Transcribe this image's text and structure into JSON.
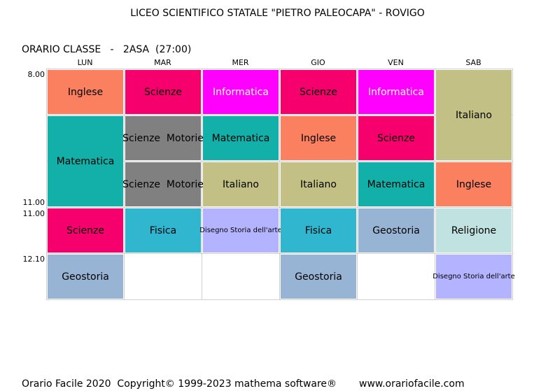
{
  "header": {
    "title": "LICEO SCIENTIFICO STATALE \"PIETRO PALEOCAPA\" - ROVIGO",
    "subtitle": "ORARIO CLASSE   -   2ASA  (27:00)"
  },
  "times": [
    "8.00",
    "11.00",
    "11.00",
    "12.10"
  ],
  "timetable": {
    "columns": [
      {
        "day": "LUN",
        "lessons": [
          "Inglese",
          "Matematica",
          "Scienze",
          "Geostoria"
        ]
      },
      {
        "day": "MAR",
        "lessons": [
          "Scienze",
          "Scienze  Motorie",
          "Scienze  Motorie",
          "Fisica"
        ]
      },
      {
        "day": "MER",
        "lessons": [
          "Informatica",
          "Matematica",
          "Italiano",
          "Disegno Storia dell'arte"
        ]
      },
      {
        "day": "GIO",
        "lessons": [
          "Scienze",
          "Inglese",
          "Italiano",
          "Fisica",
          "Geostoria"
        ]
      },
      {
        "day": "VEN",
        "lessons": [
          "Informatica",
          "Scienze",
          "Matematica",
          "Geostoria"
        ]
      },
      {
        "day": "SAB",
        "lessons": [
          "Italiano",
          "Inglese",
          "Religione",
          "Disegno Storia dell'arte"
        ]
      }
    ]
  },
  "footer": {
    "copyright": "Orario Facile 2020  Copyright© 1999-2023 mathema software®",
    "website": "www.orariofacile.com"
  }
}
